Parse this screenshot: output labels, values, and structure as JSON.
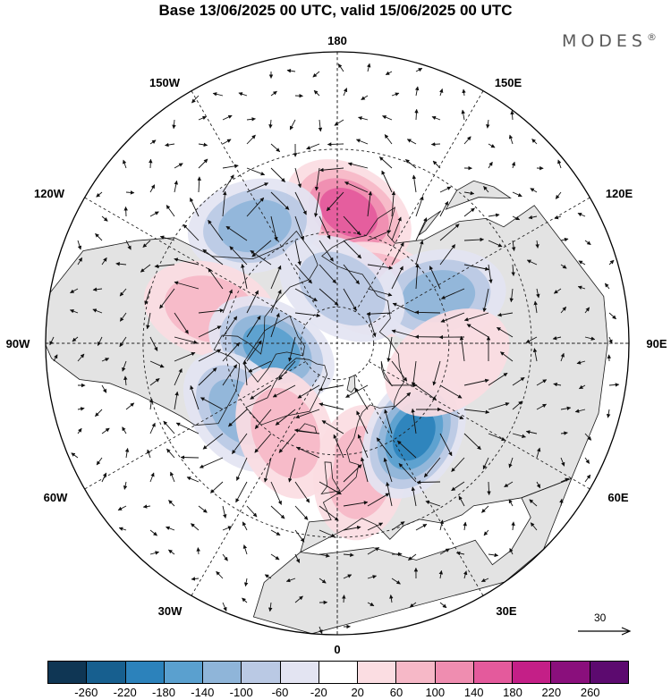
{
  "title": "Base 13/06/2025 00 UTC, valid 15/06/2025 00 UTC",
  "brand": "MODES",
  "brand_mark": "®",
  "map": {
    "projection": "north polar stereographic",
    "longitude_labels": [
      {
        "id": "lon-180",
        "text": "180"
      },
      {
        "id": "lon-150w",
        "text": "150W"
      },
      {
        "id": "lon-150e",
        "text": "150E"
      },
      {
        "id": "lon-120w",
        "text": "120W"
      },
      {
        "id": "lon-120e",
        "text": "120E"
      },
      {
        "id": "lon-90w",
        "text": "90W"
      },
      {
        "id": "lon-90e",
        "text": "90E"
      },
      {
        "id": "lon-60w",
        "text": "60W"
      },
      {
        "id": "lon-60e",
        "text": "60E"
      },
      {
        "id": "lon-30w",
        "text": "30W"
      },
      {
        "id": "lon-30e",
        "text": "30E"
      },
      {
        "id": "lon-0",
        "text": "0"
      }
    ],
    "anomaly_centers": [
      {
        "sign": "positive",
        "lon": 175,
        "lat": 55,
        "peak": 180
      },
      {
        "sign": "negative",
        "lon": -145,
        "lat": 52,
        "peak": -140
      },
      {
        "sign": "positive",
        "lon": 145,
        "lat": 72,
        "peak": 140
      },
      {
        "sign": "negative",
        "lon": 115,
        "lat": 60,
        "peak": -140
      },
      {
        "sign": "negative",
        "lon": 175,
        "lat": 75,
        "peak": -100
      },
      {
        "sign": "positive",
        "lon": -105,
        "lat": 55,
        "peak": 100
      },
      {
        "sign": "negative",
        "lon": -85,
        "lat": 72,
        "peak": -180
      },
      {
        "sign": "negative",
        "lon": -55,
        "lat": 58,
        "peak": -140
      },
      {
        "sign": "positive",
        "lon": 10,
        "lat": 55,
        "peak": 100
      },
      {
        "sign": "negative",
        "lon": 40,
        "lat": 58,
        "peak": -220
      },
      {
        "sign": "positive",
        "lon": 80,
        "lat": 60,
        "peak": 60
      },
      {
        "sign": "positive",
        "lon": -30,
        "lat": 62,
        "peak": 100
      }
    ],
    "colors": {
      "land": "#e3e3e3",
      "ocean": "#ffffff",
      "coastline": "#1a1a1a",
      "grid": "#222222",
      "vector": "#111111"
    }
  },
  "reference_vector": {
    "label": "30"
  },
  "colorbar": {
    "colors": [
      "#0f3654",
      "#175f8f",
      "#2c82bb",
      "#5aa0cf",
      "#8fb5d9",
      "#bac9e4",
      "#e3e4f2",
      "#ffffff",
      "#fbdde2",
      "#f6b8c7",
      "#ef8db0",
      "#e45a9c",
      "#c41f87",
      "#8a0f7c",
      "#5c0a6f"
    ],
    "ticks": [
      "-260",
      "-220",
      "-180",
      "-140",
      "-100",
      "-60",
      "-20",
      "20",
      "60",
      "100",
      "140",
      "180",
      "220",
      "260"
    ]
  }
}
